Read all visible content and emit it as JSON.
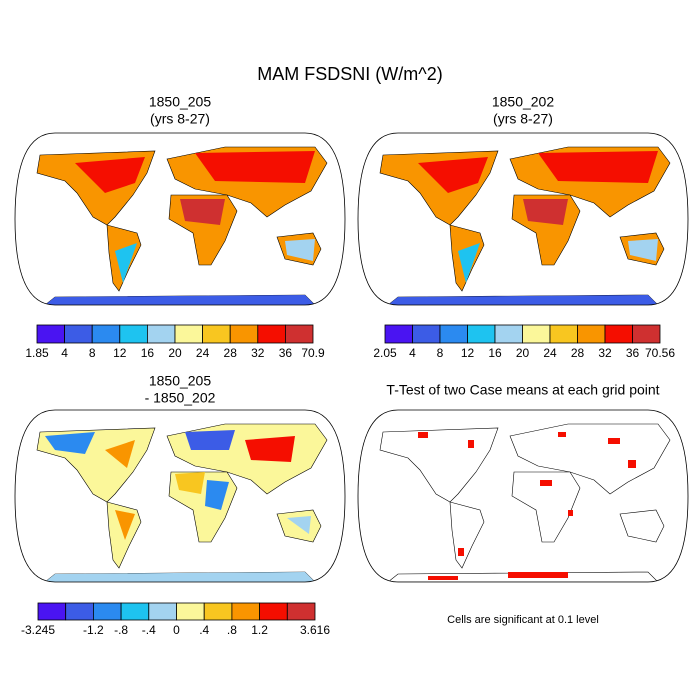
{
  "title": "MAM FSDSNI (W/m^2)",
  "panels": [
    {
      "title": [
        "1850_205",
        "(yrs 8-27)"
      ],
      "colorbar": {
        "labels": [
          "1.85",
          "4",
          "8",
          "12",
          "16",
          "20",
          "24",
          "28",
          "32",
          "36",
          "70.9"
        ],
        "colors": [
          "#4a14f2",
          "#3c5ce6",
          "#2b8af0",
          "#1ec3f0",
          "#a3d3f0",
          "#fbf79a",
          "#f8c620",
          "#f99500",
          "#f50e00",
          "#cf3030"
        ]
      }
    },
    {
      "title": [
        "1850_202",
        "(yrs 8-27)"
      ],
      "colorbar": {
        "labels": [
          "2.05",
          "4",
          "8",
          "12",
          "16",
          "20",
          "24",
          "28",
          "32",
          "36",
          "70.56"
        ],
        "colors": [
          "#4a14f2",
          "#3c5ce6",
          "#2b8af0",
          "#1ec3f0",
          "#a3d3f0",
          "#fbf79a",
          "#f8c620",
          "#f99500",
          "#f50e00",
          "#cf3030"
        ]
      }
    },
    {
      "title": [
        "1850_205",
        "- 1850_202"
      ],
      "colorbar": {
        "labels": [
          "-3.245",
          null,
          "-1.2",
          "-.8",
          "-.4",
          "0",
          ".4",
          ".8",
          "1.2",
          null,
          "3.616"
        ],
        "colors": [
          "#4a14f2",
          "#3c5ce6",
          "#2b8af0",
          "#1ec3f0",
          "#a3d3f0",
          "#fbf79a",
          "#f8c620",
          "#f99500",
          "#f50e00",
          "#cf3030"
        ]
      }
    },
    {
      "title": [
        "T-Test of two Case means at each grid point"
      ],
      "note": "Cells are significant at 0.1 level"
    }
  ]
}
